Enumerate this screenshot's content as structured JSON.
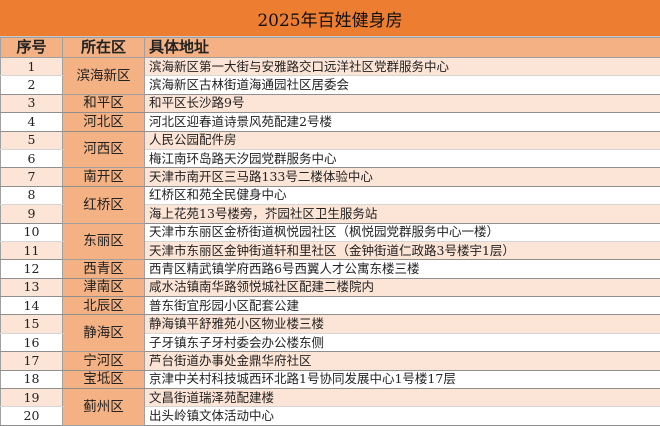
{
  "title": "2025年百姓健身房",
  "headers": {
    "index": "序号",
    "district": "所在区",
    "address": "具体地址"
  },
  "colors": {
    "title_bg": "#ED7D31",
    "header_bg": "#F4B183",
    "district_bg": "#F4B183",
    "stripe": "#FCE4D6"
  },
  "groups": [
    {
      "district": "滨海新区",
      "rows": [
        {
          "n": "1",
          "addr": "滨海新区第一大街与安雅路交口远洋社区党群服务中心"
        },
        {
          "n": "2",
          "addr": "滨海新区古林街道海通园社区居委会"
        }
      ]
    },
    {
      "district": "和平区",
      "rows": [
        {
          "n": "3",
          "addr": "和平区长沙路9号"
        }
      ]
    },
    {
      "district": "河北区",
      "rows": [
        {
          "n": "4",
          "addr": "河北区迎春道诗景风苑配建2号楼"
        }
      ]
    },
    {
      "district": "河西区",
      "rows": [
        {
          "n": "5",
          "addr": "人民公园配件房"
        },
        {
          "n": "6",
          "addr": "梅江南环岛路天汐园党群服务中心"
        }
      ]
    },
    {
      "district": "南开区",
      "rows": [
        {
          "n": "7",
          "addr": "天津市南开区三马路133号二楼体验中心"
        }
      ]
    },
    {
      "district": "红桥区",
      "rows": [
        {
          "n": "8",
          "addr": "红桥区和苑全民健身中心"
        },
        {
          "n": "9",
          "addr": "海上花苑13号楼旁，芥园社区卫生服务站"
        }
      ]
    },
    {
      "district": "东丽区",
      "rows": [
        {
          "n": "10",
          "addr": "天津市东丽区金桥街道枫悦园社区（枫悦园党群服务中心一楼）"
        },
        {
          "n": "11",
          "addr": "天津市东丽区金钟街道轩和里社区（金钟街道仁政路3号楼宇1层）"
        }
      ]
    },
    {
      "district": "西青区",
      "rows": [
        {
          "n": "12",
          "addr": "西青区精武镇学府西路6号西翼人才公寓东楼三楼"
        }
      ]
    },
    {
      "district": "津南区",
      "rows": [
        {
          "n": "13",
          "addr": "咸水沽镇南华路领悦城社区配建二楼院内"
        }
      ]
    },
    {
      "district": "北辰区",
      "rows": [
        {
          "n": "14",
          "addr": "普东街宜彤园小区配套公建"
        }
      ]
    },
    {
      "district": "静海区",
      "rows": [
        {
          "n": "15",
          "addr": "静海镇平舒雅苑小区物业楼三楼"
        },
        {
          "n": "16",
          "addr": "子牙镇东子牙村委会办公楼东侧"
        }
      ]
    },
    {
      "district": "宁河区",
      "rows": [
        {
          "n": "17",
          "addr": "芦台街道办事处金鼎华府社区"
        }
      ]
    },
    {
      "district": "宝坻区",
      "rows": [
        {
          "n": "18",
          "addr": "京津中关村科技城西环北路1号协同发展中心1号楼17层"
        }
      ]
    },
    {
      "district": "蓟州区",
      "rows": [
        {
          "n": "19",
          "addr": "文昌街道瑞泽苑配建楼"
        },
        {
          "n": "20",
          "addr": "出头岭镇文体活动中心"
        }
      ]
    }
  ]
}
